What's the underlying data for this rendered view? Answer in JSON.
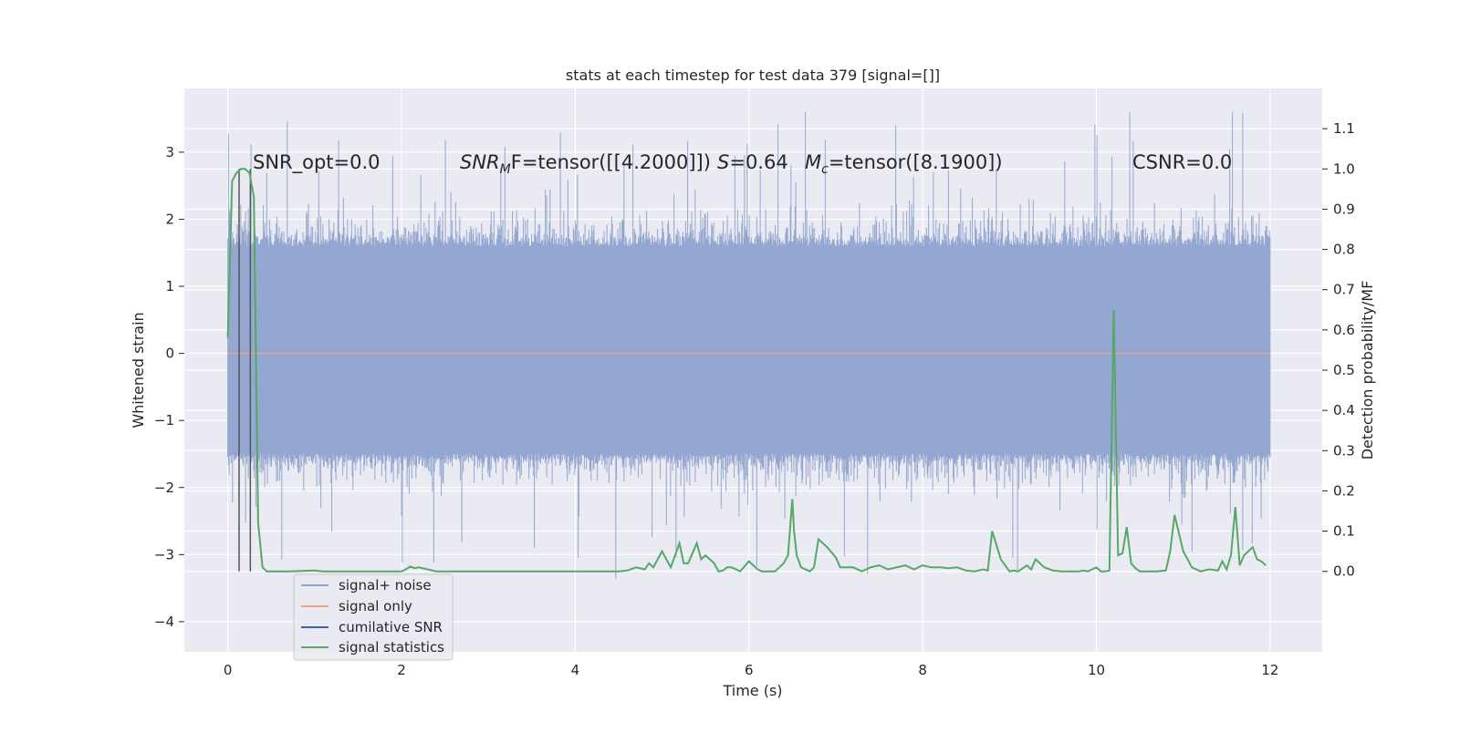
{
  "chart_data": {
    "type": "line",
    "title": "stats at each timestep for test data 379 [signal=[]]",
    "xlabel": "Time (s)",
    "ylabel_left": "Whitened strain",
    "ylabel_right": "Detection probability/MF",
    "xlim": [
      -0.5,
      12.6
    ],
    "ylim_left": [
      -4.45,
      3.95
    ],
    "ylim_right": [
      -0.2,
      1.2
    ],
    "x_ticks": [
      0,
      2,
      4,
      6,
      8,
      10,
      12
    ],
    "y_ticks_left": [
      3,
      2,
      1,
      0,
      -1,
      -2,
      -3,
      -4
    ],
    "y_ticks_right": [
      1.1,
      1.0,
      0.9,
      0.8,
      0.7,
      0.6,
      0.5,
      0.4,
      0.3,
      0.2,
      0.1,
      0.0
    ],
    "grid": true,
    "legend_position": "lower-left",
    "legend": [
      {
        "label": "signal+ noise",
        "color": "#8fa3cd"
      },
      {
        "label": "signal only",
        "color": "#e5a58e"
      },
      {
        "label": "cumilative SNR",
        "color": "#3c5fa6"
      },
      {
        "label": "signal statistics",
        "color": "#55a868"
      }
    ],
    "annotations": {
      "snr_opt": "SNR_opt=0.0",
      "snr_mf_base": "SNR",
      "snr_mf_sub": "M",
      "snr_mf_tail": "F=tensor([[4.2000]])",
      "s_var": "S",
      "s_val": "=0.64",
      "mc_base": "M",
      "mc_sub": "c",
      "mc_tail": "=tensor([8.1900])",
      "csnr": "CSNR=0.0"
    },
    "vertical_markers": [
      0.13,
      0.26
    ],
    "series": [
      {
        "name": "signal+ noise",
        "color": "#8fa3cd",
        "axis": "left",
        "x_range": [
          0,
          12
        ],
        "envelope": {
          "upper_typical": 1.6,
          "lower_typical": -1.5,
          "peak_max": 3.6,
          "peak_min": -4.1
        }
      },
      {
        "name": "signal only",
        "color": "#e5a58e",
        "axis": "left",
        "x": [
          0,
          12
        ],
        "values": [
          0,
          0
        ]
      },
      {
        "name": "signal statistics",
        "color": "#55a868",
        "axis": "right",
        "x": [
          0.0,
          0.05,
          0.1,
          0.15,
          0.2,
          0.25,
          0.3,
          0.35,
          0.4,
          0.45,
          0.5,
          0.7,
          1.0,
          1.1,
          1.2,
          1.5,
          1.8,
          2.0,
          2.05,
          2.1,
          2.15,
          2.2,
          2.3,
          2.4,
          2.5,
          3.0,
          3.5,
          4.0,
          4.1,
          4.3,
          4.5,
          4.6,
          4.7,
          4.8,
          4.85,
          4.9,
          5.0,
          5.1,
          5.2,
          5.25,
          5.3,
          5.4,
          5.45,
          5.5,
          5.6,
          5.65,
          5.7,
          5.75,
          5.8,
          5.9,
          6.0,
          6.1,
          6.15,
          6.2,
          6.3,
          6.35,
          6.4,
          6.45,
          6.5,
          6.52,
          6.55,
          6.6,
          6.7,
          6.75,
          6.8,
          6.9,
          7.0,
          7.05,
          7.1,
          7.2,
          7.3,
          7.4,
          7.5,
          7.6,
          7.7,
          7.8,
          7.9,
          8.0,
          8.1,
          8.2,
          8.3,
          8.4,
          8.5,
          8.6,
          8.7,
          8.75,
          8.8,
          8.9,
          9.0,
          9.05,
          9.1,
          9.2,
          9.25,
          9.3,
          9.4,
          9.5,
          9.6,
          9.7,
          9.8,
          9.85,
          9.9,
          10.0,
          10.05,
          10.1,
          10.15,
          10.2,
          10.25,
          10.3,
          10.35,
          10.4,
          10.45,
          10.5,
          10.6,
          10.7,
          10.8,
          10.85,
          10.9,
          11.0,
          11.1,
          11.2,
          11.3,
          11.4,
          11.45,
          11.5,
          11.55,
          11.6,
          11.65,
          11.7,
          11.75,
          11.8,
          11.85,
          11.9,
          11.95
        ],
        "values": [
          0.58,
          0.97,
          0.99,
          1.0,
          1.0,
          0.99,
          0.93,
          0.12,
          0.01,
          0.0,
          0.0,
          0.0,
          0.002,
          0.0,
          0.0,
          0.0,
          0.0,
          0.0,
          0.005,
          0.012,
          0.008,
          0.01,
          0.005,
          0.0,
          0.0,
          0.0,
          0.0,
          0.0,
          0.0,
          0.0,
          0.0,
          0.002,
          0.01,
          0.005,
          0.02,
          0.01,
          0.05,
          0.01,
          0.07,
          0.02,
          0.02,
          0.07,
          0.03,
          0.04,
          0.02,
          0.0,
          0.002,
          0.01,
          0.01,
          0.0,
          0.025,
          0.005,
          0.0,
          0.0,
          0.0,
          0.01,
          0.02,
          0.04,
          0.18,
          0.1,
          0.04,
          0.01,
          0.0,
          0.01,
          0.08,
          0.06,
          0.035,
          0.01,
          0.01,
          0.01,
          0.0,
          0.01,
          0.015,
          0.005,
          0.01,
          0.015,
          0.005,
          0.015,
          0.01,
          0.01,
          0.008,
          0.01,
          0.002,
          0.0,
          0.005,
          0.002,
          0.1,
          0.03,
          0.0,
          0.002,
          0.0,
          0.015,
          0.005,
          0.03,
          0.01,
          0.002,
          0.0,
          0.0,
          0.0,
          0.002,
          0.0,
          0.01,
          0.0,
          0.0,
          0.002,
          0.65,
          0.04,
          0.045,
          0.11,
          0.02,
          0.008,
          0.0,
          0.0,
          0.0,
          0.002,
          0.05,
          0.14,
          0.05,
          0.01,
          0.0,
          0.005,
          0.002,
          0.025,
          0.005,
          0.04,
          0.16,
          0.015,
          0.04,
          0.05,
          0.06,
          0.03,
          0.025,
          0.015
        ]
      }
    ]
  }
}
